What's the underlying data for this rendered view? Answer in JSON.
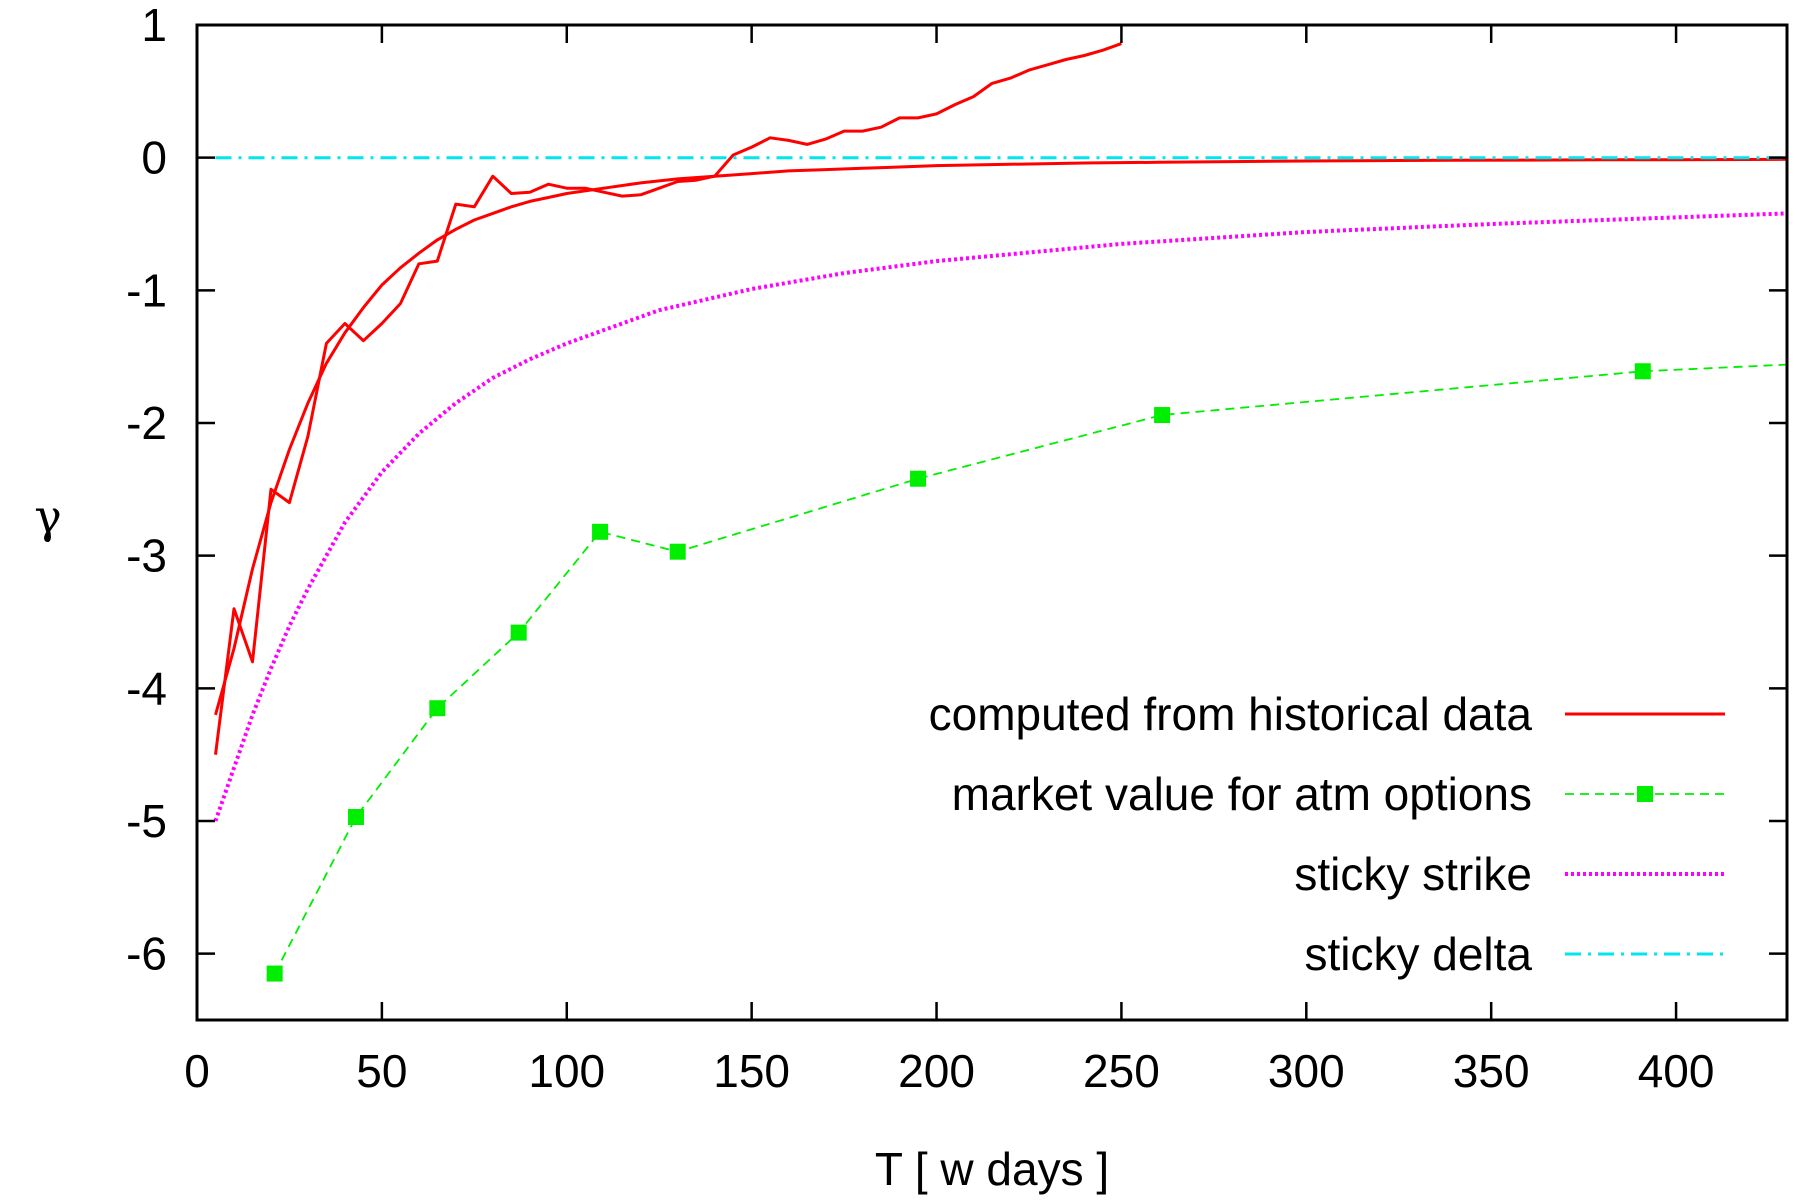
{
  "chart_data": {
    "type": "line",
    "xlabel": "T [ w days ]",
    "ylabel": "γ",
    "xlim": [
      0,
      430
    ],
    "ylim": [
      -6.5,
      1
    ],
    "xticks": [
      0,
      50,
      100,
      150,
      200,
      250,
      300,
      350,
      400
    ],
    "yticks": [
      1,
      0,
      -1,
      -2,
      -3,
      -4,
      -5,
      -6
    ],
    "grid": false,
    "legend_position": "bottom-right",
    "series": [
      {
        "name": "computed from historical data",
        "color": "#ff0000",
        "style": "solid",
        "x": [
          5,
          10,
          15,
          20,
          25,
          30,
          35,
          40,
          45,
          50,
          55,
          60,
          65,
          70,
          75,
          80,
          85,
          90,
          95,
          100,
          105,
          110,
          115,
          120,
          125,
          130,
          135,
          140,
          145,
          150,
          155,
          160,
          165,
          170,
          175,
          180,
          185,
          190,
          195,
          200,
          205,
          210,
          215,
          220,
          225,
          230,
          235,
          240,
          245,
          250
        ],
        "y": [
          -4.5,
          -3.4,
          -3.8,
          -2.5,
          -2.6,
          -2.1,
          -1.4,
          -1.25,
          -1.38,
          -1.25,
          -1.1,
          -0.8,
          -0.78,
          -0.35,
          -0.37,
          -0.14,
          -0.27,
          -0.26,
          -0.2,
          -0.23,
          -0.23,
          -0.26,
          -0.29,
          -0.28,
          -0.23,
          -0.18,
          -0.17,
          -0.14,
          0.02,
          0.08,
          0.15,
          0.13,
          0.1,
          0.14,
          0.2,
          0.2,
          0.23,
          0.3,
          0.3,
          0.33,
          0.4,
          0.46,
          0.56,
          0.6,
          0.66,
          0.7,
          0.74,
          0.77,
          0.81,
          0.86
        ]
      },
      {
        "name": "",
        "color": "#ff0000",
        "style": "solid",
        "x": [
          5,
          10,
          15,
          20,
          25,
          30,
          35,
          40,
          45,
          50,
          55,
          60,
          65,
          70,
          75,
          80,
          85,
          90,
          95,
          100,
          110,
          120,
          130,
          140,
          150,
          160,
          170,
          180,
          190,
          200,
          220,
          240,
          260,
          280,
          300,
          320,
          340,
          360,
          380,
          400,
          430
        ],
        "y": [
          -4.2,
          -3.7,
          -3.1,
          -2.6,
          -2.2,
          -1.85,
          -1.55,
          -1.32,
          -1.13,
          -0.96,
          -0.83,
          -0.72,
          -0.62,
          -0.54,
          -0.47,
          -0.42,
          -0.37,
          -0.33,
          -0.3,
          -0.27,
          -0.23,
          -0.19,
          -0.16,
          -0.14,
          -0.12,
          -0.1,
          -0.09,
          -0.08,
          -0.07,
          -0.06,
          -0.05,
          -0.04,
          -0.035,
          -0.03,
          -0.025,
          -0.022,
          -0.02,
          -0.018,
          -0.016,
          -0.015,
          -0.012
        ]
      },
      {
        "name": "market value for atm options",
        "color": "#00ee00",
        "style": "dashed-points",
        "x": [
          21,
          43,
          65,
          87,
          109,
          130,
          195,
          261,
          391,
          430
        ],
        "y": [
          -6.15,
          -4.97,
          -4.15,
          -3.58,
          -2.82,
          -2.97,
          -2.42,
          -1.94,
          -1.61,
          -1.56
        ]
      },
      {
        "name": "sticky strike",
        "color": "#ff00ff",
        "style": "dotted",
        "x": [
          5,
          10,
          15,
          20,
          25,
          30,
          40,
          50,
          60,
          70,
          80,
          90,
          100,
          125,
          150,
          175,
          200,
          250,
          300,
          350,
          400,
          430
        ],
        "y": [
          -5.0,
          -4.6,
          -4.2,
          -3.85,
          -3.53,
          -3.25,
          -2.75,
          -2.37,
          -2.08,
          -1.85,
          -1.66,
          -1.52,
          -1.4,
          -1.15,
          -0.99,
          -0.87,
          -0.78,
          -0.65,
          -0.56,
          -0.5,
          -0.45,
          -0.42
        ]
      },
      {
        "name": "sticky delta",
        "color": "#00e5ee",
        "style": "dash-dot",
        "x": [
          5,
          430
        ],
        "y": [
          0,
          0
        ]
      }
    ]
  }
}
